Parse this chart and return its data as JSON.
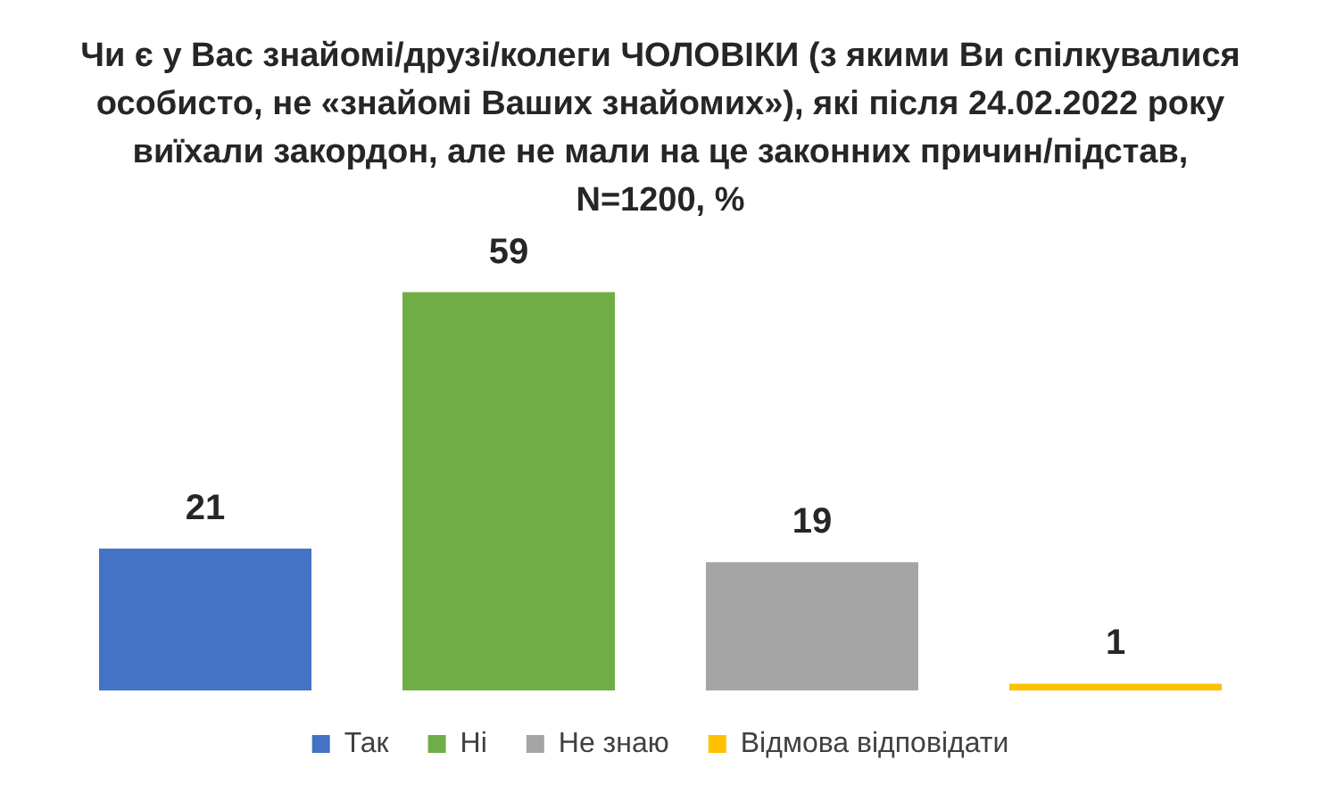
{
  "chart_data": {
    "type": "bar",
    "title": "Чи є у Вас знайомі/друзі/колеги ЧОЛОВІКИ (з якими Ви спілкувалися особисто, не «знайомі Ваших знайомих»), які після 24.02.2022 року виїхали закордон, але не мали на це законних причин/підстав, N=1200, %",
    "categories": [
      null,
      null,
      null,
      null
    ],
    "series": [
      {
        "name": "Так",
        "color": "#4472c4",
        "values": [
          21,
          null,
          null,
          null
        ]
      },
      {
        "name": "Ні",
        "color": "#70ad47",
        "values": [
          null,
          59,
          null,
          null
        ]
      },
      {
        "name": "Не знаю",
        "color": "#a5a5a5",
        "values": [
          null,
          null,
          19,
          null
        ]
      },
      {
        "name": "Відмова відповідати",
        "color": "#ffc000",
        "values": [
          null,
          null,
          null,
          1
        ]
      }
    ],
    "stacked": true,
    "data_labels": true,
    "legend": "bottom",
    "grid": false
  }
}
